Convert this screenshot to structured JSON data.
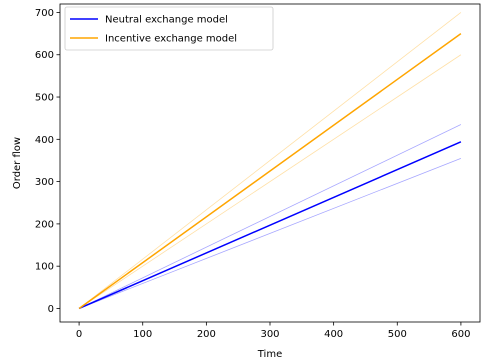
{
  "chart_data": {
    "type": "line",
    "xlabel": "Time",
    "ylabel": "Order flow",
    "xlim": [
      -30,
      630
    ],
    "ylim": [
      -32,
      720
    ],
    "xticks": [
      0,
      100,
      200,
      300,
      400,
      500,
      600
    ],
    "yticks": [
      0,
      100,
      200,
      300,
      400,
      500,
      600,
      700
    ],
    "legend_position": "top-left",
    "grid": false,
    "series": [
      {
        "name": "Neutral exchange model",
        "color": "#0000ff",
        "x": [
          0,
          600
        ],
        "y": [
          0,
          394
        ],
        "band_lower": [
          0,
          355
        ],
        "band_upper": [
          0,
          435
        ]
      },
      {
        "name": "Incentive exchange model",
        "color": "#ffa500",
        "x": [
          0,
          600
        ],
        "y": [
          0,
          650
        ],
        "band_lower": [
          0,
          600
        ],
        "band_upper": [
          0,
          700
        ]
      }
    ]
  }
}
